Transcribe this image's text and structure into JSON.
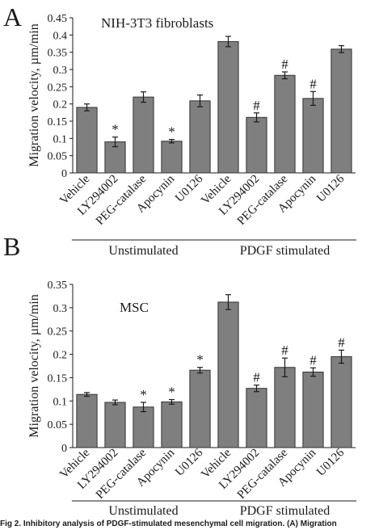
{
  "caption": "Fig 2. Inhibitory analysis of PDGF-stimulated mesenchymal cell migration. (A) Migration",
  "chart_data": [
    {
      "type": "bar",
      "panel_label": "A",
      "title": "NIH-3T3 fibroblasts",
      "ylabel": "Migration velocity, µm/min",
      "xlabel": "",
      "ylim": [
        0,
        0.45
      ],
      "yticks": [
        "0",
        "0.05",
        "0.1",
        "0.15",
        "0.2",
        "0.25",
        "0.3",
        "0.35",
        "0.4",
        "0.45"
      ],
      "grid": false,
      "bar_color": "#7f7f7f",
      "categories": [
        "Vehicle",
        "LY294002",
        "PEG-catalase",
        "Apocynin",
        "U0126",
        "Vehicle",
        "LY294002",
        "PEG-catalase",
        "Apocynin",
        "U0126"
      ],
      "values": [
        0.19,
        0.09,
        0.22,
        0.092,
        0.209,
        0.381,
        0.161,
        0.283,
        0.216,
        0.359
      ],
      "errors": [
        0.01,
        0.014,
        0.015,
        0.005,
        0.017,
        0.015,
        0.013,
        0.01,
        0.02,
        0.01
      ],
      "markers": [
        "",
        "*",
        "",
        "*",
        "",
        "",
        "#",
        "#",
        "#",
        ""
      ],
      "groups": [
        {
          "label": "Unstimulated",
          "start": 0,
          "end": 4
        },
        {
          "label": "PDGF stimulated",
          "start": 5,
          "end": 9
        }
      ]
    },
    {
      "type": "bar",
      "panel_label": "B",
      "title": "MSC",
      "ylabel": "Migration velocity, µm/min",
      "xlabel": "",
      "ylim": [
        0,
        0.35
      ],
      "yticks": [
        "0",
        "0.05",
        "0.1",
        "0.15",
        "0.2",
        "0.25",
        "0.3",
        "0.35"
      ],
      "grid": false,
      "bar_color": "#7f7f7f",
      "categories": [
        "Vehicle",
        "LY294002",
        "PEG-catalase",
        "Apocynin",
        "U0126",
        "Vehicle",
        "LY294002",
        "PEG-catalase",
        "Apocynin",
        "U0126"
      ],
      "values": [
        0.114,
        0.097,
        0.087,
        0.098,
        0.166,
        0.312,
        0.127,
        0.172,
        0.162,
        0.195
      ],
      "errors": [
        0.004,
        0.005,
        0.01,
        0.005,
        0.006,
        0.016,
        0.007,
        0.02,
        0.009,
        0.014
      ],
      "markers": [
        "",
        "",
        "*",
        "*",
        "*",
        "",
        "#",
        "#",
        "#",
        "#"
      ],
      "groups": [
        {
          "label": "Unstimulated",
          "start": 0,
          "end": 4
        },
        {
          "label": "PDGF stimulated",
          "start": 5,
          "end": 9
        }
      ]
    }
  ]
}
